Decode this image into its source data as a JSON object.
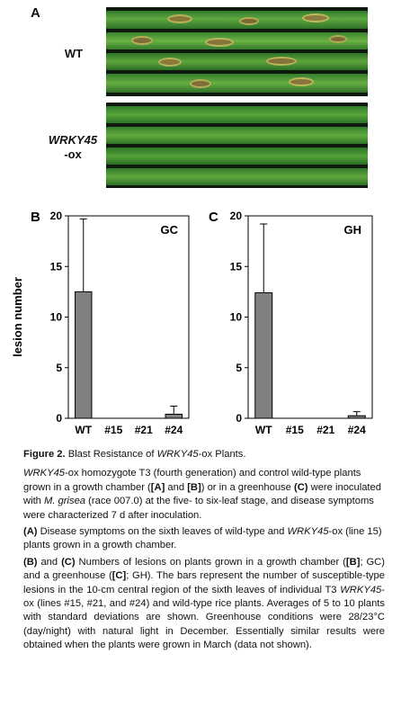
{
  "panel_a": {
    "letter": "A",
    "wt_label": "WT",
    "ox_label_line1": "WRKY45",
    "ox_label_line2": "-ox"
  },
  "chart_data": [
    {
      "type": "bar",
      "panel": "B",
      "condition": "GC",
      "ylabel": "lesion number",
      "ylim": [
        0,
        20
      ],
      "yticks": [
        0,
        5,
        10,
        15,
        20
      ],
      "categories": [
        "WT",
        "#15",
        "#21",
        "#24"
      ],
      "values": [
        12.5,
        0,
        0,
        0.4
      ],
      "errors": [
        7.2,
        0,
        0,
        0.8
      ],
      "color": "#808080"
    },
    {
      "type": "bar",
      "panel": "C",
      "condition": "GH",
      "ylabel": "lesion number",
      "ylim": [
        0,
        20
      ],
      "yticks": [
        0,
        5,
        10,
        15,
        20
      ],
      "categories": [
        "WT",
        "#15",
        "#21",
        "#24"
      ],
      "values": [
        12.4,
        0,
        0,
        0.25
      ],
      "errors": [
        6.8,
        0,
        0,
        0.4
      ],
      "color": "#808080"
    }
  ],
  "caption": {
    "title_prefix": "Figure 2.",
    "title_a": "Blast Resistance of ",
    "title_gene": "WRKY45",
    "title_b": "-ox Plants.",
    "p1_gene": "WRKY45",
    "p1_a": "-ox homozygote T3 (fourth generation) and control wild-type plants grown in a growth chamber (",
    "p1_ref1": "[A]",
    "p1_b": " and ",
    "p1_ref2": "[B]",
    "p1_c": ") or in a greenhouse ",
    "p1_ref3": "(C)",
    "p1_d": " were inoculated with ",
    "p1_species": "M. grisea",
    "p1_e": " (race 007.0) at the five- to six-leaf stage, and disease symptoms were characterized 7 d after inoculation.",
    "p2_ref": "(A)",
    "p2_a": " Disease symptoms on the sixth leaves of wild-type and ",
    "p2_gene": "WRKY45",
    "p2_b": "-ox (line 15) plants grown in a growth chamber.",
    "p3_ref1": "(B)",
    "p3_a": " and ",
    "p3_ref2": "(C)",
    "p3_b": " Numbers of lesions on plants grown in a growth chamber (",
    "p3_ref3": "[B]",
    "p3_c": "; GC) and a greenhouse (",
    "p3_ref4": "[C]",
    "p3_d": "; GH). The bars represent the number of susceptible-type lesions in the 10-cm central region of the sixth leaves of individual T3 ",
    "p3_gene": "WRKY45",
    "p3_e": "-ox (lines #15, #21, and #24) and wild-type rice plants. Averages of 5 to 10 plants with standard deviations are shown. Greenhouse conditions were 28/23°C (day/night) with natural light in December. Essentially similar results were obtained when the plants were grown in March (data not shown)."
  }
}
